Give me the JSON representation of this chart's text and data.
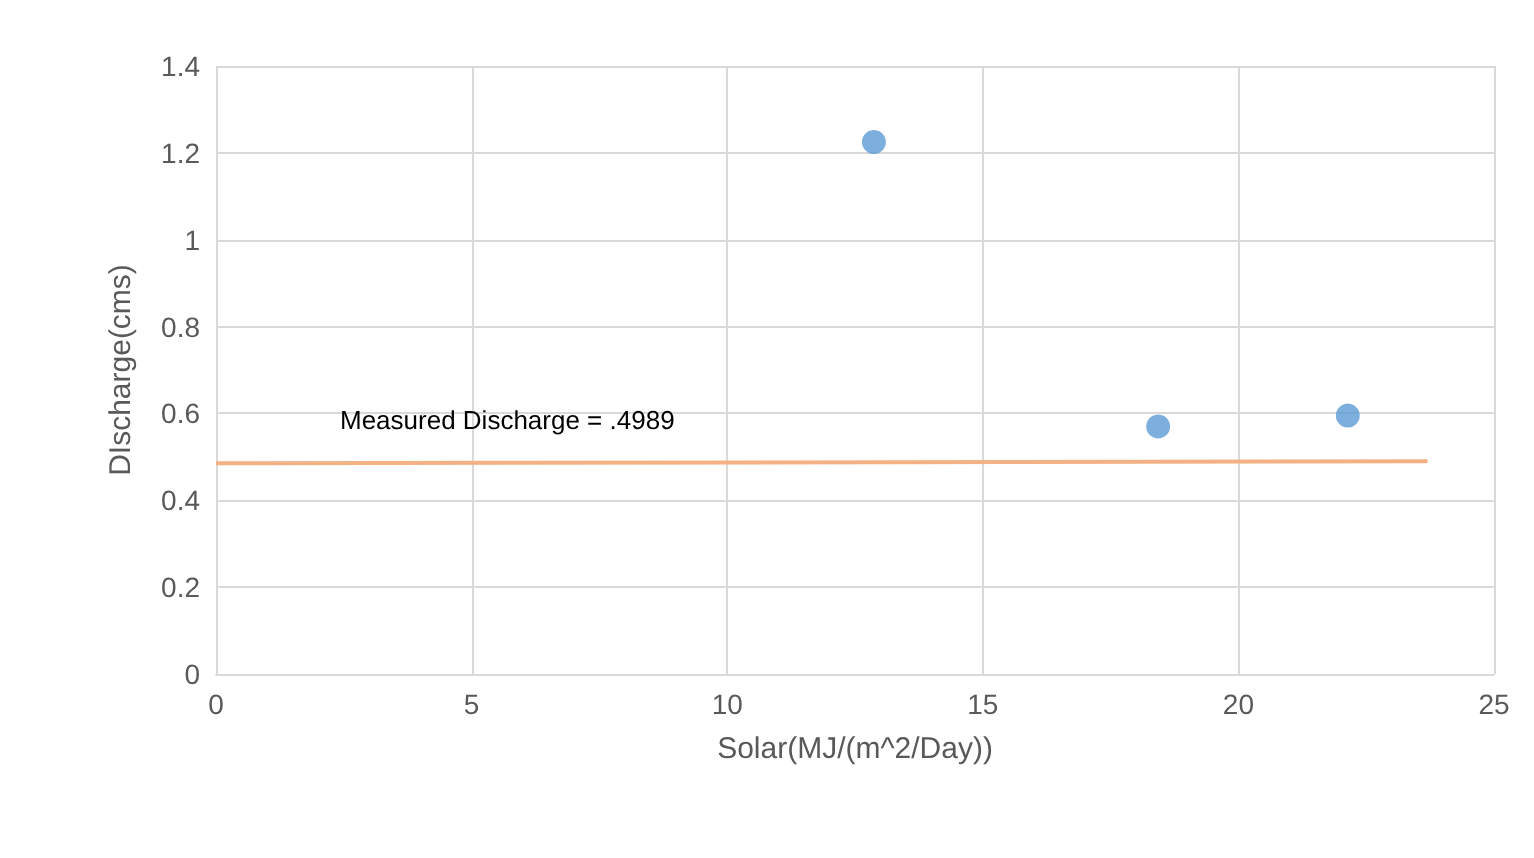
{
  "chart_data": {
    "type": "scatter",
    "xlabel": "Solar(MJ/(m^2/Day))",
    "ylabel": "DIscharge(cms)",
    "xlim": [
      0,
      25
    ],
    "xticks": [
      0,
      5,
      10,
      15,
      20,
      25
    ],
    "ylim": [
      0,
      1.4
    ],
    "yticks": [
      0,
      0.2,
      0.4,
      0.6,
      0.8,
      1,
      1.2,
      1.4
    ],
    "grid": true,
    "series": [
      {
        "marker": "circle",
        "color": "#5b9bd5",
        "x": [
          12.87,
          18.43,
          22.14
        ],
        "values": [
          1.225,
          0.57,
          0.595
        ]
      },
      {
        "type": "line",
        "marker": "none",
        "color": "#f4b183",
        "x": [
          0,
          23.7
        ],
        "values": [
          0.485,
          0.49
        ]
      }
    ],
    "annotations": [
      "Measured Discharge = .4989"
    ]
  }
}
